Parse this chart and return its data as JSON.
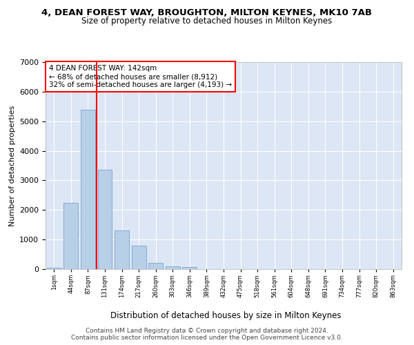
{
  "title": "4, DEAN FOREST WAY, BROUGHTON, MILTON KEYNES, MK10 7AB",
  "subtitle": "Size of property relative to detached houses in Milton Keynes",
  "xlabel": "Distribution of detached houses by size in Milton Keynes",
  "ylabel": "Number of detached properties",
  "categories": [
    "1sqm",
    "44sqm",
    "87sqm",
    "131sqm",
    "174sqm",
    "217sqm",
    "260sqm",
    "303sqm",
    "346sqm",
    "389sqm",
    "432sqm",
    "475sqm",
    "518sqm",
    "561sqm",
    "604sqm",
    "648sqm",
    "691sqm",
    "734sqm",
    "777sqm",
    "820sqm",
    "863sqm"
  ],
  "values": [
    50,
    2250,
    5400,
    3350,
    1300,
    800,
    200,
    100,
    70,
    0,
    0,
    0,
    0,
    0,
    0,
    0,
    0,
    0,
    0,
    0,
    0
  ],
  "bar_color": "#b8cfe8",
  "bar_edge_color": "#6898c8",
  "vline_x": 2.5,
  "vline_color": "red",
  "annotation_text": "4 DEAN FOREST WAY: 142sqm\n← 68% of detached houses are smaller (8,912)\n32% of semi-detached houses are larger (4,193) →",
  "annotation_box_color": "white",
  "annotation_box_edge": "red",
  "ylim": [
    0,
    7000
  ],
  "yticks": [
    0,
    1000,
    2000,
    3000,
    4000,
    5000,
    6000,
    7000
  ],
  "bg_color": "#dce6f5",
  "grid_color": "white",
  "footer1": "Contains HM Land Registry data © Crown copyright and database right 2024.",
  "footer2": "Contains public sector information licensed under the Open Government Licence v3.0."
}
